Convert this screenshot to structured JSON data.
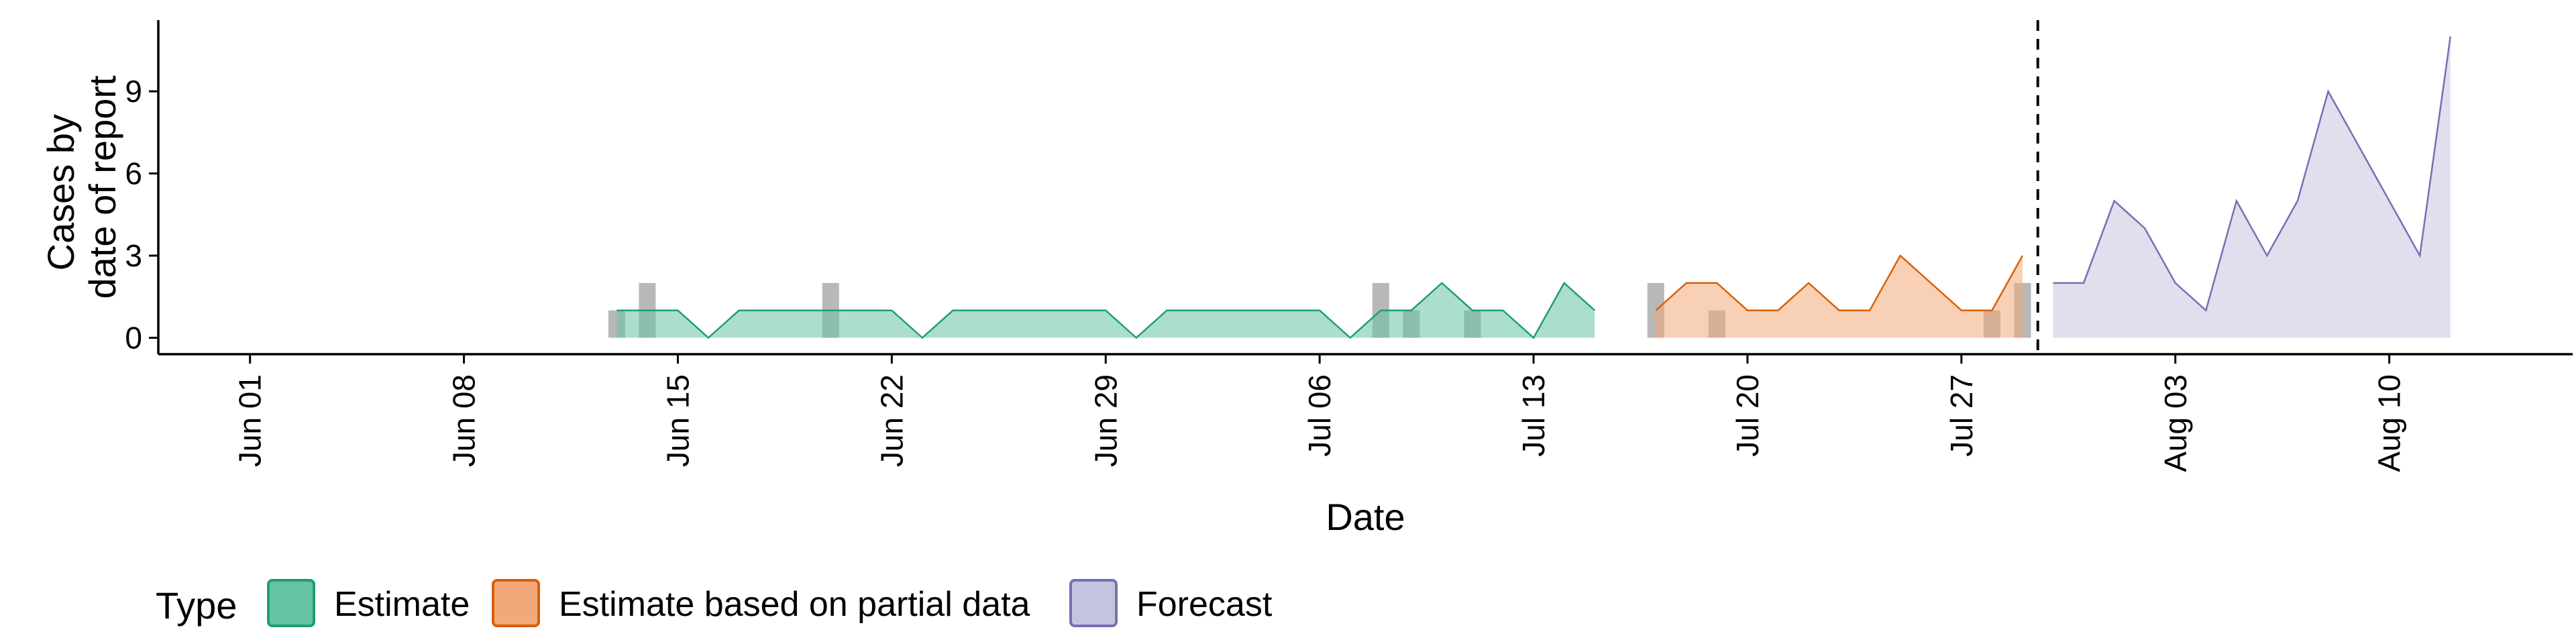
{
  "chart_data": {
    "type": "area",
    "xlabel": "Date",
    "ylabel_lines": [
      "Cases by",
      "date of report"
    ],
    "xlim": [
      "2023-05-29",
      "2023-08-16"
    ],
    "ylim": [
      -0.6,
      11.6
    ],
    "y_ticks": [
      0,
      3,
      6,
      9
    ],
    "x_ticks": [
      {
        "date": "2023-06-01",
        "label": "Jun 01"
      },
      {
        "date": "2023-06-08",
        "label": "Jun 08"
      },
      {
        "date": "2023-06-15",
        "label": "Jun 15"
      },
      {
        "date": "2023-06-22",
        "label": "Jun 22"
      },
      {
        "date": "2023-06-29",
        "label": "Jun 29"
      },
      {
        "date": "2023-07-06",
        "label": "Jul 06"
      },
      {
        "date": "2023-07-13",
        "label": "Jul 13"
      },
      {
        "date": "2023-07-20",
        "label": "Jul 20"
      },
      {
        "date": "2023-07-27",
        "label": "Jul 27"
      },
      {
        "date": "2023-08-03",
        "label": "Aug 03"
      },
      {
        "date": "2023-08-10",
        "label": "Aug 10"
      }
    ],
    "forecast_date": "2023-07-29",
    "observed_bars": [
      {
        "date": "2023-06-13",
        "value": 1
      },
      {
        "date": "2023-06-14",
        "value": 2
      },
      {
        "date": "2023-06-20",
        "value": 2
      },
      {
        "date": "2023-07-08",
        "value": 2
      },
      {
        "date": "2023-07-09",
        "value": 1
      },
      {
        "date": "2023-07-11",
        "value": 1
      },
      {
        "date": "2023-07-17",
        "value": 2
      },
      {
        "date": "2023-07-19",
        "value": 1
      },
      {
        "date": "2023-07-28",
        "value": 1
      },
      {
        "date": "2023-07-29",
        "value": 2
      }
    ],
    "legend": {
      "title": "Type",
      "position": "bottom"
    },
    "series": [
      {
        "name": "Estimate",
        "fill": "#66c2a5",
        "stroke": "#1b9e77",
        "x": [
          "2023-06-13",
          "2023-06-14",
          "2023-06-15",
          "2023-06-16",
          "2023-06-17",
          "2023-06-18",
          "2023-06-19",
          "2023-06-20",
          "2023-06-21",
          "2023-06-22",
          "2023-06-23",
          "2023-06-24",
          "2023-06-25",
          "2023-06-26",
          "2023-06-27",
          "2023-06-28",
          "2023-06-29",
          "2023-06-30",
          "2023-07-01",
          "2023-07-02",
          "2023-07-03",
          "2023-07-04",
          "2023-07-05",
          "2023-07-06",
          "2023-07-07",
          "2023-07-08",
          "2023-07-09",
          "2023-07-10",
          "2023-07-11",
          "2023-07-12",
          "2023-07-13",
          "2023-07-14",
          "2023-07-15",
          "2023-07-16"
        ],
        "values": [
          1,
          1,
          1,
          0,
          1,
          1,
          1,
          1,
          1,
          1,
          0,
          1,
          1,
          1,
          1,
          1,
          1,
          0,
          1,
          1,
          1,
          1,
          1,
          1,
          0,
          1,
          1,
          2,
          1,
          1,
          0,
          2,
          1,
          null
        ]
      },
      {
        "name": "Estimate based on partial data",
        "fill": "#f2a97a",
        "stroke": "#d95f02",
        "x": [
          "2023-07-17",
          "2023-07-18",
          "2023-07-19",
          "2023-07-20",
          "2023-07-21",
          "2023-07-22",
          "2023-07-23",
          "2023-07-24",
          "2023-07-25",
          "2023-07-26",
          "2023-07-27",
          "2023-07-28",
          "2023-07-29"
        ],
        "values": [
          1,
          2,
          2,
          1,
          1,
          2,
          1,
          1,
          3,
          2,
          1,
          1,
          3
        ]
      },
      {
        "name": "Forecast",
        "fill": "#c5c4e0",
        "stroke": "#7570b3",
        "x": [
          "2023-07-30",
          "2023-07-31",
          "2023-08-01",
          "2023-08-02",
          "2023-08-03",
          "2023-08-04",
          "2023-08-05",
          "2023-08-06",
          "2023-08-07",
          "2023-08-08",
          "2023-08-09",
          "2023-08-10",
          "2023-08-11",
          "2023-08-12"
        ],
        "values": [
          2,
          2,
          5,
          4,
          2,
          1,
          5,
          3,
          5,
          9,
          7,
          5,
          3,
          11
        ]
      }
    ]
  }
}
